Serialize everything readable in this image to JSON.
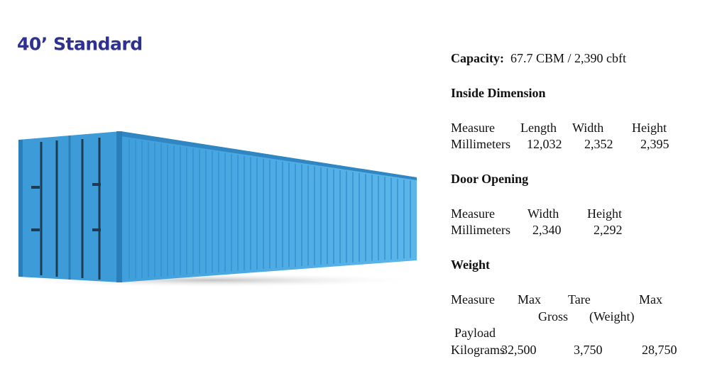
{
  "header": {
    "title": "40’ Standard"
  },
  "capacity": {
    "label": "Capacity:",
    "value": "67.7 CBM / 2,390 cbft"
  },
  "inside_dimension": {
    "title": "Inside Dimension",
    "rows": [
      [
        "Measure",
        "Length",
        "Width",
        "Height"
      ],
      [
        "Millimeters",
        "12,032",
        "2,352",
        "2,395"
      ]
    ]
  },
  "door_opening": {
    "title": "Door Opening",
    "rows": [
      [
        "Measure",
        "Width",
        "Height"
      ],
      [
        "Millimeters",
        "2,340",
        "2,292"
      ]
    ]
  },
  "weight": {
    "title": "Weight",
    "rows": [
      [
        "Measure",
        "Max",
        "Tare",
        "Max"
      ],
      [
        "Gross",
        "(Weight)"
      ],
      [
        "Payload"
      ],
      [
        "Kilograms",
        "32,500",
        "3,750",
        "28,750"
      ]
    ]
  }
}
